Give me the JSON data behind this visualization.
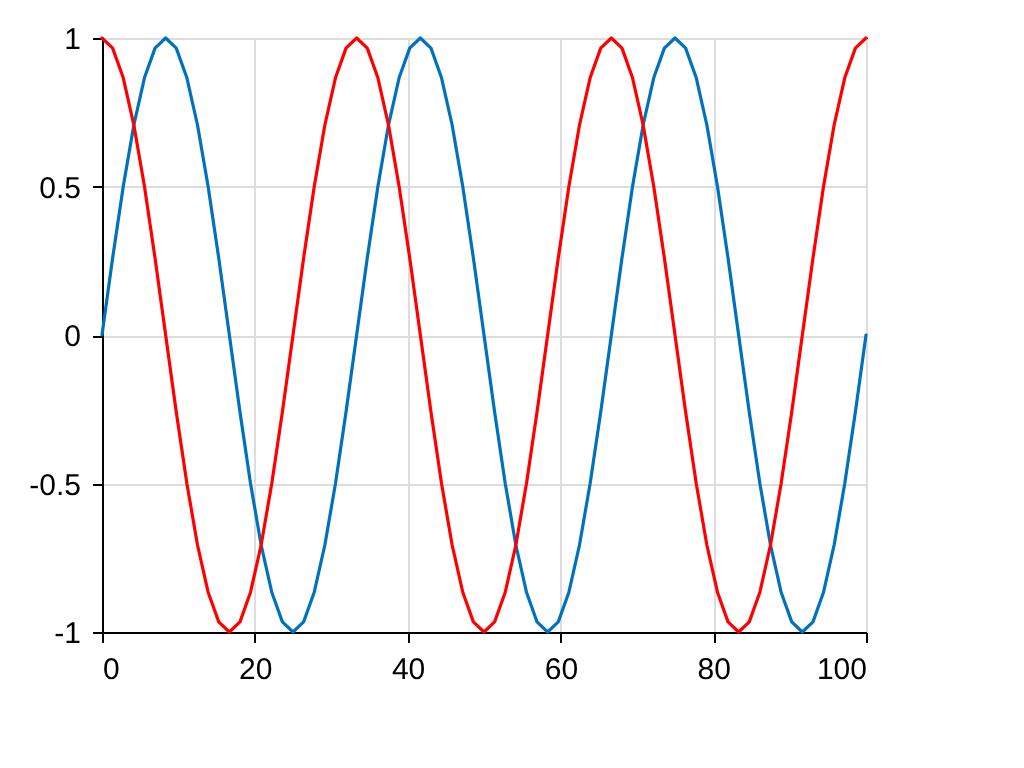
{
  "chart_data": {
    "type": "line",
    "x": [
      0,
      1.39,
      2.78,
      4.17,
      5.56,
      6.94,
      8.33,
      9.72,
      11.11,
      12.5,
      13.89,
      15.28,
      16.67,
      18.06,
      19.44,
      20.83,
      22.22,
      23.61,
      25,
      26.39,
      27.78,
      29.17,
      30.56,
      31.94,
      33.33,
      34.72,
      36.11,
      37.5,
      38.89,
      40.28,
      41.67,
      43.06,
      44.44,
      45.83,
      47.22,
      48.61,
      50,
      51.39,
      52.78,
      54.17,
      55.56,
      56.94,
      58.33,
      59.72,
      61.11,
      62.5,
      63.89,
      65.28,
      66.67,
      68.06,
      69.44,
      70.83,
      72.22,
      73.61,
      75,
      76.39,
      77.78,
      79.17,
      80.56,
      81.94,
      83.33,
      84.72,
      86.11,
      87.5,
      88.89,
      90.28,
      91.67,
      93.06,
      94.44,
      95.83,
      97.22,
      98.61,
      100
    ],
    "series": [
      {
        "color": "#0072bd",
        "values": [
          0,
          0.259,
          0.5,
          0.707,
          0.866,
          0.966,
          1,
          0.966,
          0.866,
          0.707,
          0.5,
          0.259,
          0,
          -0.259,
          -0.5,
          -0.707,
          -0.866,
          -0.966,
          -1,
          -0.966,
          -0.866,
          -0.707,
          -0.5,
          -0.259,
          0,
          0.259,
          0.5,
          0.707,
          0.866,
          0.966,
          1,
          0.966,
          0.866,
          0.707,
          0.5,
          0.259,
          0,
          -0.259,
          -0.5,
          -0.707,
          -0.866,
          -0.966,
          -1,
          -0.966,
          -0.866,
          -0.707,
          -0.5,
          -0.259,
          0,
          0.259,
          0.5,
          0.707,
          0.866,
          0.966,
          1,
          0.966,
          0.866,
          0.707,
          0.5,
          0.259,
          0,
          -0.259,
          -0.5,
          -0.707,
          -0.866,
          -0.966,
          -1,
          -0.966,
          -0.866,
          -0.707,
          -0.5,
          -0.259,
          0
        ]
      },
      {
        "color": "#ff0000",
        "values": [
          1,
          0.966,
          0.866,
          0.707,
          0.5,
          0.259,
          0,
          -0.259,
          -0.5,
          -0.707,
          -0.866,
          -0.966,
          -1,
          -0.966,
          -0.866,
          -0.707,
          -0.5,
          -0.259,
          0,
          0.259,
          0.5,
          0.707,
          0.866,
          0.966,
          1,
          0.966,
          0.866,
          0.707,
          0.5,
          0.259,
          0,
          -0.259,
          -0.5,
          -0.707,
          -0.866,
          -0.966,
          -1,
          -0.966,
          -0.866,
          -0.707,
          -0.5,
          -0.259,
          0,
          0.259,
          0.5,
          0.707,
          0.866,
          0.966,
          1,
          0.966,
          0.866,
          0.707,
          0.5,
          0.259,
          0,
          -0.259,
          -0.5,
          -0.707,
          -0.866,
          -0.966,
          -1,
          -0.966,
          -0.866,
          -0.707,
          -0.5,
          -0.259,
          0,
          0.259,
          0.5,
          0.707,
          0.866,
          0.966,
          1
        ]
      }
    ],
    "xlim": [
      0,
      100
    ],
    "xticks": [
      0,
      20,
      40,
      60,
      80,
      100
    ],
    "ylim": [
      -1,
      1
    ],
    "yticks": [
      -1,
      -0.5,
      0,
      0.5,
      1
    ],
    "grid": true
  }
}
